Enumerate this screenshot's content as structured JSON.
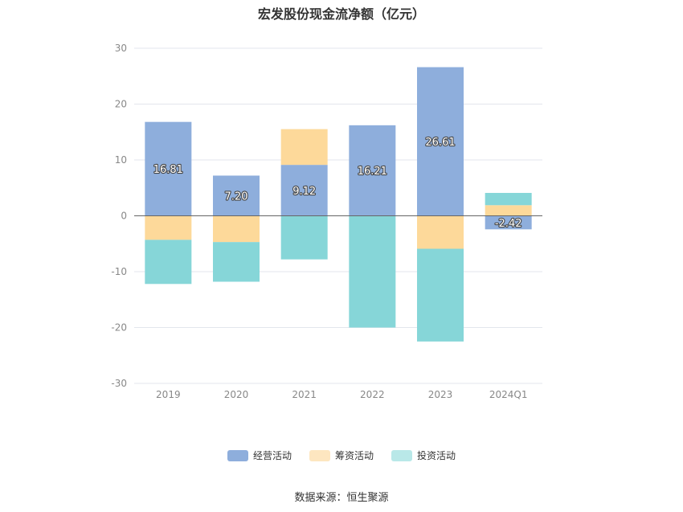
{
  "chart_data": {
    "type": "bar",
    "stacked": true,
    "title": "宏发股份现金流净额（亿元）",
    "categories": [
      "2019",
      "2020",
      "2021",
      "2022",
      "2023",
      "2024Q1"
    ],
    "ylim": [
      -30,
      30
    ],
    "yticks": [
      30,
      20,
      10,
      0,
      -10,
      -20,
      -30
    ],
    "grid": true,
    "legend_position": "bottom",
    "series": [
      {
        "name": "经营活动",
        "color": "#8eaedc",
        "values": [
          16.81,
          7.2,
          9.12,
          16.21,
          26.61,
          -2.42
        ],
        "labels": [
          "16.81",
          "7.20",
          "9.12",
          "16.21",
          "26.61",
          "-2.42"
        ]
      },
      {
        "name": "筹资活动",
        "color": "#fdd99a",
        "values": [
          -4.3,
          -4.7,
          6.4,
          0,
          -5.9,
          1.9
        ]
      },
      {
        "name": "投资活动",
        "color": "#86d6d8",
        "values": [
          -7.9,
          -7.1,
          -7.8,
          -20.0,
          -16.6,
          2.2
        ]
      }
    ]
  },
  "legend": {
    "items": [
      {
        "label": "经营活动",
        "color": "#8eaedc"
      },
      {
        "label": "筹资活动",
        "color": "#fdd99a"
      },
      {
        "label": "投资活动",
        "color": "#b9e8e8"
      }
    ]
  },
  "source_text": "数据来源：恒生聚源"
}
